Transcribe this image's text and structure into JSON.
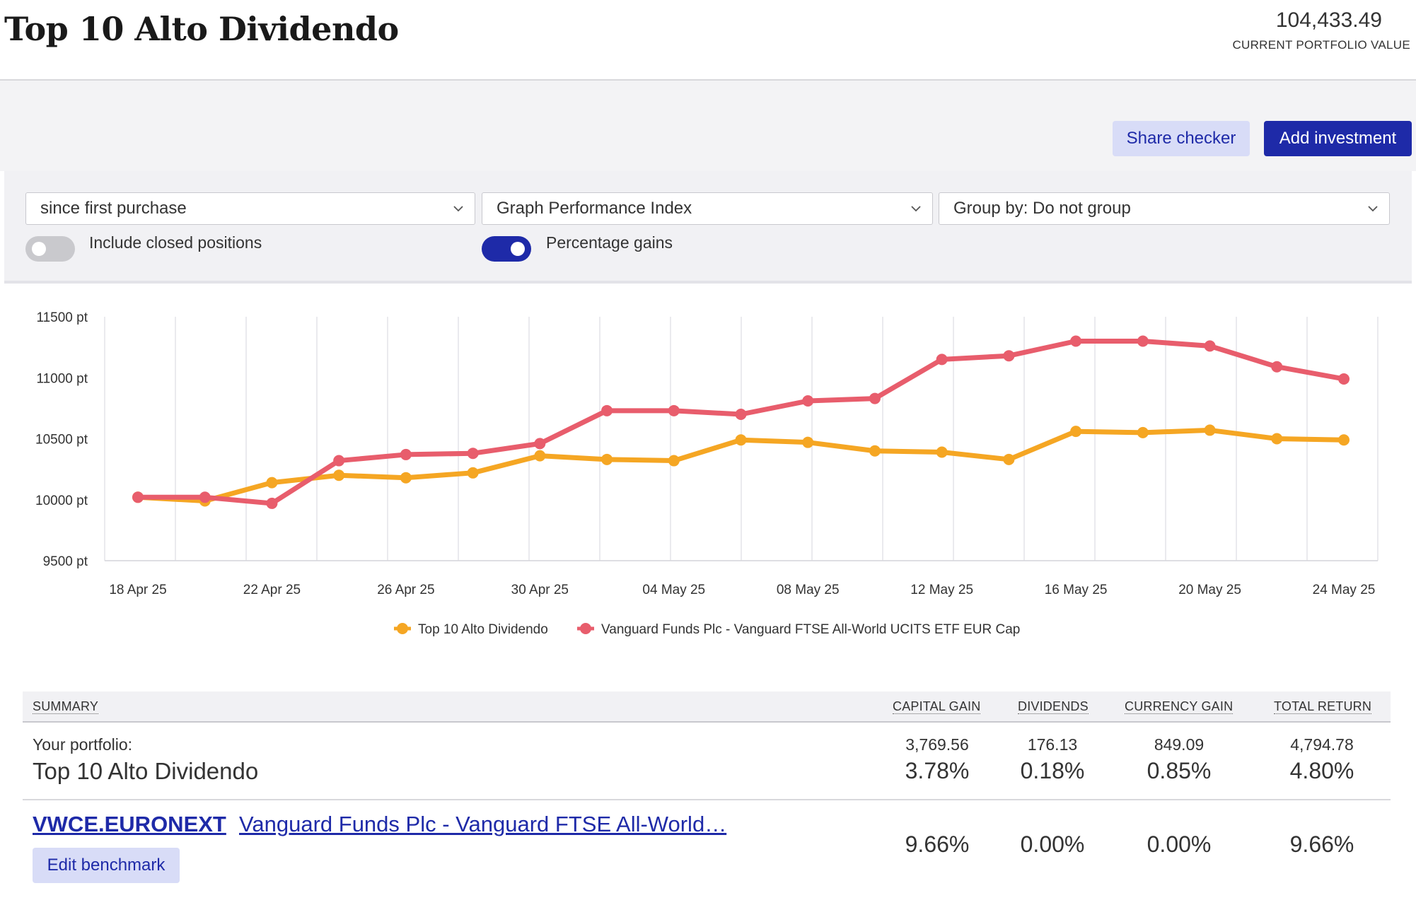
{
  "header": {
    "title": "Top 10 Alto Dividendo",
    "portfolio_value": "104,433.49",
    "portfolio_value_label": "CURRENT PORTFOLIO VALUE"
  },
  "actions": {
    "share_checker": "Share checker",
    "add_investment": "Add investment"
  },
  "controls": {
    "period_select": "since first purchase",
    "graph_select": "Graph Performance Index",
    "group_select": "Group by: Do not group",
    "include_closed_label": "Include closed positions",
    "include_closed_on": false,
    "percentage_gains_label": "Percentage gains",
    "percentage_gains_on": true
  },
  "colors": {
    "accent": "#1e2aa8",
    "accent_light": "#d8dcf7",
    "series_portfolio": "#f5a623",
    "series_benchmark": "#e85d6c"
  },
  "chart_data": {
    "type": "line",
    "y_tick_labels": [
      "11500 pt",
      "11000 pt",
      "10500 pt",
      "10000 pt",
      "9500 pt"
    ],
    "y_ticks": [
      11500,
      11000,
      10500,
      10000,
      9500
    ],
    "ylim": [
      9500,
      11500
    ],
    "x_tick_labels": [
      "18 Apr 25",
      "22 Apr 25",
      "26 Apr 25",
      "30 Apr 25",
      "04 May 25",
      "08 May 25",
      "12 May 25",
      "16 May 25",
      "20 May 25",
      "24 May 25"
    ],
    "x": [
      "18 Apr 25",
      "20 Apr 25",
      "22 Apr 25",
      "24 Apr 25",
      "26 Apr 25",
      "28 Apr 25",
      "30 Apr 25",
      "02 May 25",
      "04 May 25",
      "06 May 25",
      "08 May 25",
      "10 May 25",
      "12 May 25",
      "14 May 25",
      "16 May 25",
      "18 May 25",
      "20 May 25",
      "22 May 25",
      "24 May 25"
    ],
    "grid": true,
    "legend_position": "bottom-center",
    "series": [
      {
        "name": "Top 10 Alto Dividendo",
        "color": "#f5a623",
        "values": [
          10020,
          9990,
          10140,
          10200,
          10180,
          10220,
          10360,
          10330,
          10320,
          10490,
          10470,
          10400,
          10390,
          10330,
          10560,
          10550,
          10570,
          10500,
          10490
        ]
      },
      {
        "name": "Vanguard Funds Plc - Vanguard FTSE All-World UCITS ETF EUR Cap",
        "color": "#e85d6c",
        "values": [
          10020,
          10020,
          9970,
          10320,
          10370,
          10380,
          10460,
          10730,
          10730,
          10700,
          10810,
          10830,
          11150,
          11180,
          11300,
          11300,
          11260,
          11090,
          10990
        ]
      }
    ]
  },
  "summary": {
    "headers": {
      "summary": "SUMMARY",
      "capital_gain": "CAPITAL GAIN",
      "dividends": "DIVIDENDS",
      "currency_gain": "CURRENCY GAIN",
      "total_return": "TOTAL RETURN"
    },
    "portfolio_row": {
      "label_small": "Your portfolio:",
      "label_large": "Top 10 Alto Dividendo",
      "capital_gain_abs": "3,769.56",
      "dividends_abs": "176.13",
      "currency_gain_abs": "849.09",
      "total_return_abs": "4,794.78",
      "capital_gain_pct": "3.78%",
      "dividends_pct": "0.18%",
      "currency_gain_pct": "0.85%",
      "total_return_pct": "4.80%"
    },
    "benchmark_row": {
      "ticker": "VWCE.EURONEXT",
      "name": "Vanguard Funds Plc - Vanguard FTSE All-World…",
      "edit_button": "Edit benchmark",
      "capital_gain_pct": "9.66%",
      "dividends_pct": "0.00%",
      "currency_gain_pct": "0.00%",
      "total_return_pct": "9.66%"
    }
  }
}
